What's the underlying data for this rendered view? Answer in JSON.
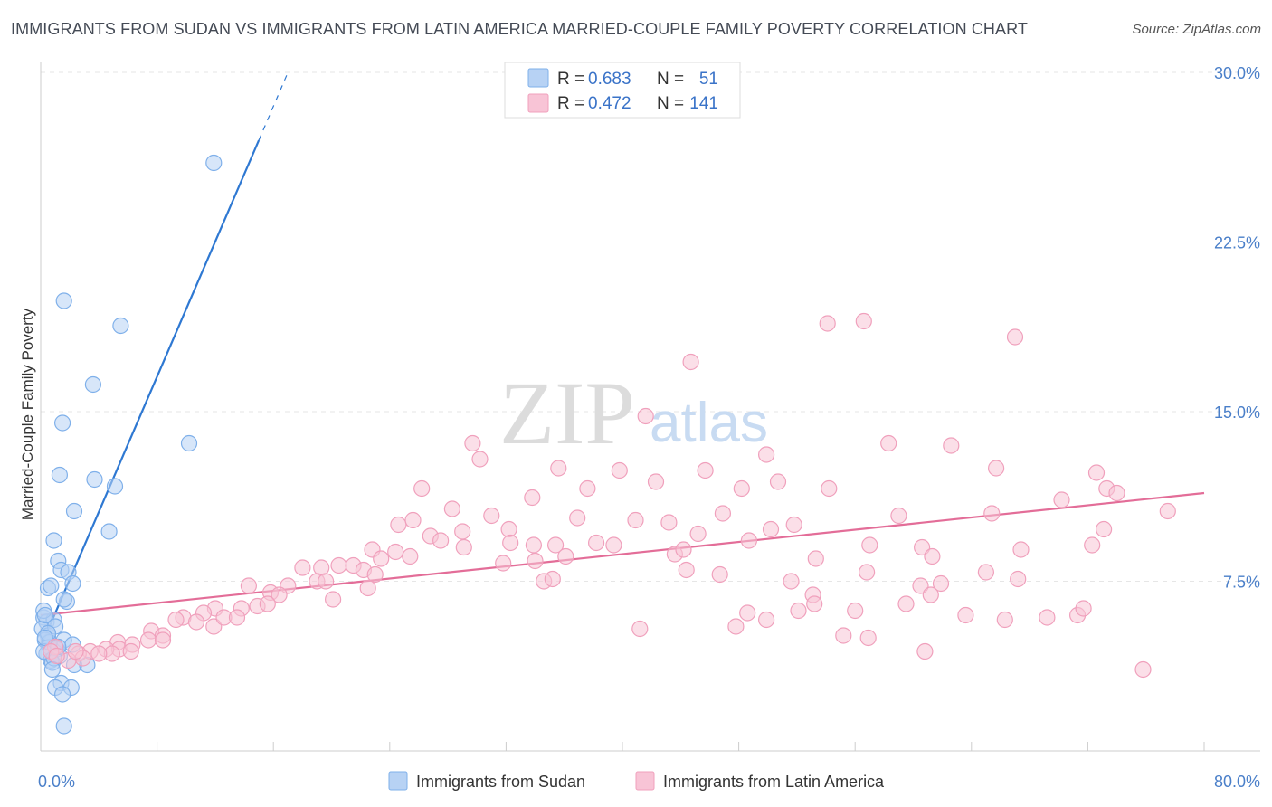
{
  "header": {
    "title": "IMMIGRANTS FROM SUDAN VS IMMIGRANTS FROM LATIN AMERICA MARRIED-COUPLE FAMILY POVERTY CORRELATION CHART",
    "source": "Source: ZipAtlas.com"
  },
  "watermark": {
    "zip": "ZIP",
    "atlas": "atlas"
  },
  "legend": {
    "rows": [
      {
        "r_label": "R = ",
        "r_value": "0.683",
        "n_label": "N = ",
        "n_value": "51"
      },
      {
        "r_label": "R = ",
        "r_value": "0.472",
        "n_label": "N = ",
        "n_value": "141"
      }
    ]
  },
  "chart_data": {
    "type": "scatter",
    "title": "IMMIGRANTS FROM SUDAN VS IMMIGRANTS FROM LATIN AMERICA MARRIED-COUPLE FAMILY POVERTY CORRELATION CHART",
    "xlabel": "",
    "ylabel": "Married-Couple Family Poverty",
    "xlim": [
      0,
      80
    ],
    "ylim": [
      0,
      30
    ],
    "x_tick_labels": [
      "0.0%",
      "80.0%"
    ],
    "y_ticks": [
      7.5,
      15.0,
      22.5,
      30.0
    ],
    "y_tick_labels": [
      "7.5%",
      "15.0%",
      "22.5%",
      "30.0%"
    ],
    "grid": true,
    "legend_position": "top-center",
    "series": [
      {
        "name": "Immigrants from Sudan",
        "color": "#7fb0ea",
        "fill": "#b7d2f4",
        "line_color": "#2e78d2",
        "R": 0.683,
        "N": 51,
        "trend": {
          "x0": 0.0,
          "y0": 4.6,
          "x1": 15.0,
          "y1": 27.0,
          "dash_to_x": 17.0,
          "dash_to_y": 30.0
        },
        "points": [
          [
            11.9,
            26.0
          ],
          [
            1.6,
            19.9
          ],
          [
            5.5,
            18.8
          ],
          [
            3.6,
            16.2
          ],
          [
            1.5,
            14.5
          ],
          [
            10.2,
            13.6
          ],
          [
            1.3,
            12.2
          ],
          [
            3.7,
            12.0
          ],
          [
            5.1,
            11.7
          ],
          [
            2.3,
            10.6
          ],
          [
            4.7,
            9.7
          ],
          [
            0.9,
            9.3
          ],
          [
            1.2,
            8.4
          ],
          [
            1.4,
            8.0
          ],
          [
            1.9,
            7.9
          ],
          [
            2.2,
            7.4
          ],
          [
            0.5,
            7.2
          ],
          [
            0.7,
            7.3
          ],
          [
            1.8,
            6.6
          ],
          [
            1.6,
            6.7
          ],
          [
            0.2,
            5.9
          ],
          [
            0.4,
            5.7
          ],
          [
            0.9,
            5.8
          ],
          [
            0.1,
            5.4
          ],
          [
            0.5,
            5.1
          ],
          [
            0.3,
            4.9
          ],
          [
            1.6,
            4.9
          ],
          [
            2.2,
            4.7
          ],
          [
            0.6,
            4.6
          ],
          [
            1.1,
            4.5
          ],
          [
            0.4,
            4.3
          ],
          [
            1.3,
            4.2
          ],
          [
            0.7,
            4.0
          ],
          [
            2.3,
            3.8
          ],
          [
            3.2,
            3.8
          ],
          [
            0.8,
            3.9
          ],
          [
            1.4,
            3.0
          ],
          [
            1.0,
            2.8
          ],
          [
            2.1,
            2.8
          ],
          [
            1.5,
            2.5
          ],
          [
            1.6,
            1.1
          ],
          [
            0.2,
            6.2
          ],
          [
            0.3,
            6.0
          ],
          [
            0.6,
            4.8
          ],
          [
            0.9,
            4.1
          ],
          [
            1.0,
            5.5
          ],
          [
            0.2,
            4.4
          ],
          [
            0.5,
            5.2
          ],
          [
            1.2,
            4.6
          ],
          [
            0.8,
            3.6
          ],
          [
            0.3,
            5.0
          ]
        ]
      },
      {
        "name": "Immigrants from Latin America",
        "color": "#f0a0bc",
        "fill": "#f8c4d6",
        "line_color": "#e36d98",
        "R": 0.472,
        "N": 141,
        "trend": {
          "x0": 0.0,
          "y0": 6.0,
          "x1": 80.0,
          "y1": 11.4
        },
        "points": [
          [
            54.1,
            18.9
          ],
          [
            56.6,
            19.0
          ],
          [
            67.0,
            18.3
          ],
          [
            44.7,
            17.2
          ],
          [
            41.6,
            14.8
          ],
          [
            29.7,
            13.6
          ],
          [
            30.2,
            12.9
          ],
          [
            49.9,
            13.1
          ],
          [
            58.3,
            13.6
          ],
          [
            62.6,
            13.5
          ],
          [
            35.6,
            12.5
          ],
          [
            39.8,
            12.4
          ],
          [
            45.7,
            12.4
          ],
          [
            65.7,
            12.5
          ],
          [
            72.6,
            12.3
          ],
          [
            26.2,
            11.6
          ],
          [
            33.8,
            11.2
          ],
          [
            37.6,
            11.6
          ],
          [
            42.3,
            11.9
          ],
          [
            48.2,
            11.6
          ],
          [
            50.7,
            11.9
          ],
          [
            54.2,
            11.6
          ],
          [
            73.3,
            11.6
          ],
          [
            74.0,
            11.4
          ],
          [
            70.2,
            11.1
          ],
          [
            28.3,
            10.7
          ],
          [
            31.0,
            10.4
          ],
          [
            36.9,
            10.3
          ],
          [
            40.9,
            10.2
          ],
          [
            43.2,
            10.1
          ],
          [
            46.9,
            10.5
          ],
          [
            51.8,
            10.0
          ],
          [
            59.0,
            10.4
          ],
          [
            65.4,
            10.5
          ],
          [
            77.5,
            10.6
          ],
          [
            24.6,
            10.0
          ],
          [
            25.6,
            10.2
          ],
          [
            32.2,
            9.8
          ],
          [
            26.8,
            9.5
          ],
          [
            29.0,
            9.7
          ],
          [
            27.5,
            9.3
          ],
          [
            45.2,
            9.6
          ],
          [
            50.2,
            9.8
          ],
          [
            39.4,
            9.1
          ],
          [
            57.0,
            9.1
          ],
          [
            60.6,
            9.0
          ],
          [
            48.7,
            9.3
          ],
          [
            73.1,
            9.8
          ],
          [
            72.3,
            9.1
          ],
          [
            67.4,
            8.9
          ],
          [
            22.8,
            8.9
          ],
          [
            24.4,
            8.8
          ],
          [
            23.4,
            8.5
          ],
          [
            29.1,
            9.0
          ],
          [
            32.3,
            9.2
          ],
          [
            33.9,
            9.1
          ],
          [
            35.4,
            9.1
          ],
          [
            38.2,
            9.2
          ],
          [
            43.6,
            8.7
          ],
          [
            44.2,
            8.9
          ],
          [
            18.0,
            8.1
          ],
          [
            19.3,
            8.1
          ],
          [
            20.5,
            8.2
          ],
          [
            21.5,
            8.2
          ],
          [
            22.2,
            8.0
          ],
          [
            25.4,
            8.6
          ],
          [
            31.8,
            8.3
          ],
          [
            34.0,
            8.4
          ],
          [
            36.1,
            8.6
          ],
          [
            53.3,
            8.5
          ],
          [
            61.3,
            8.6
          ],
          [
            44.4,
            8.0
          ],
          [
            56.8,
            7.9
          ],
          [
            61.9,
            7.4
          ],
          [
            65.0,
            7.9
          ],
          [
            67.2,
            7.6
          ],
          [
            23.0,
            7.8
          ],
          [
            17.0,
            7.3
          ],
          [
            19.0,
            7.5
          ],
          [
            19.6,
            7.5
          ],
          [
            22.5,
            7.2
          ],
          [
            34.6,
            7.5
          ],
          [
            35.2,
            7.6
          ],
          [
            46.7,
            7.8
          ],
          [
            51.6,
            7.5
          ],
          [
            60.5,
            7.3
          ],
          [
            14.3,
            7.3
          ],
          [
            15.8,
            7.0
          ],
          [
            16.4,
            6.9
          ],
          [
            20.1,
            6.7
          ],
          [
            53.1,
            6.9
          ],
          [
            61.2,
            6.9
          ],
          [
            59.5,
            6.5
          ],
          [
            53.2,
            6.5
          ],
          [
            52.1,
            6.2
          ],
          [
            56.0,
            6.2
          ],
          [
            12.0,
            6.3
          ],
          [
            13.8,
            6.3
          ],
          [
            14.9,
            6.4
          ],
          [
            11.2,
            6.1
          ],
          [
            9.8,
            5.9
          ],
          [
            10.7,
            5.7
          ],
          [
            11.9,
            5.5
          ],
          [
            12.6,
            5.9
          ],
          [
            13.5,
            5.9
          ],
          [
            9.3,
            5.8
          ],
          [
            15.6,
            6.5
          ],
          [
            48.6,
            6.1
          ],
          [
            63.6,
            6.0
          ],
          [
            69.2,
            5.9
          ],
          [
            71.3,
            6.0
          ],
          [
            71.7,
            6.3
          ],
          [
            66.3,
            5.8
          ],
          [
            49.9,
            5.8
          ],
          [
            47.8,
            5.5
          ],
          [
            41.2,
            5.4
          ],
          [
            55.2,
            5.1
          ],
          [
            56.9,
            5.0
          ],
          [
            7.6,
            5.3
          ],
          [
            8.4,
            5.1
          ],
          [
            7.4,
            4.9
          ],
          [
            8.4,
            4.9
          ],
          [
            5.3,
            4.8
          ],
          [
            5.4,
            4.5
          ],
          [
            6.3,
            4.7
          ],
          [
            6.2,
            4.4
          ],
          [
            4.5,
            4.5
          ],
          [
            4.9,
            4.3
          ],
          [
            3.4,
            4.4
          ],
          [
            4.0,
            4.3
          ],
          [
            2.6,
            4.3
          ],
          [
            2.9,
            4.1
          ],
          [
            1.9,
            4.0
          ],
          [
            2.4,
            4.4
          ],
          [
            1.0,
            4.6
          ],
          [
            0.7,
            4.4
          ],
          [
            1.1,
            4.2
          ],
          [
            60.8,
            4.4
          ],
          [
            75.8,
            3.6
          ]
        ]
      }
    ]
  }
}
